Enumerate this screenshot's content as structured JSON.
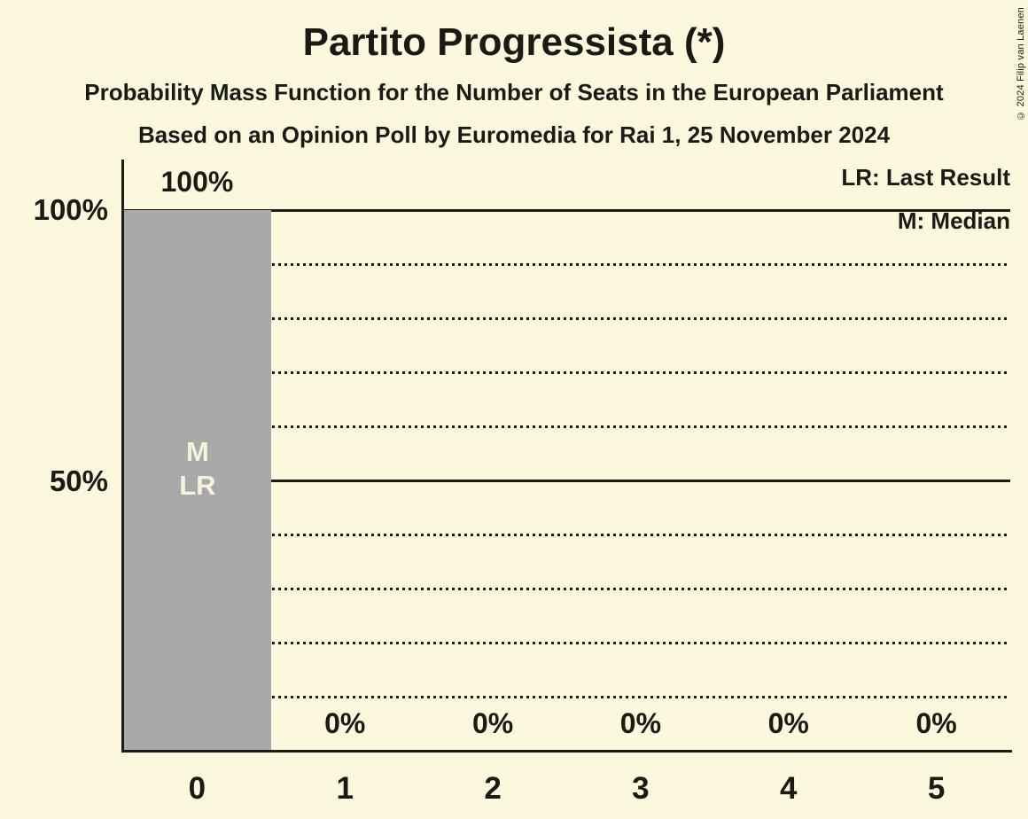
{
  "title": "Partito Progressista (*)",
  "subtitle1": "Probability Mass Function for the Number of Seats in the European Parliament",
  "subtitle2": "Based on an Opinion Poll by Euromedia for Rai 1, 25 November 2024",
  "copyright": "© 2024 Filip van Laenen",
  "legend": {
    "lr": "LR: Last Result",
    "m": "M: Median"
  },
  "colors": {
    "background": "#FCF8DE",
    "text": "#1B1B15",
    "bar": "#A9A9A9",
    "bar_label": "#F7F2DC"
  },
  "chart_data": {
    "type": "bar",
    "title": "Partito Progressista (*)",
    "categories": [
      "0",
      "1",
      "2",
      "3",
      "4",
      "5"
    ],
    "values": [
      100,
      0,
      0,
      0,
      0,
      0
    ],
    "value_labels": [
      "100%",
      "0%",
      "0%",
      "0%",
      "0%",
      "0%"
    ],
    "ylim": [
      0,
      100
    ],
    "y_axis_labels": [
      {
        "value": 100,
        "label": "100%"
      },
      {
        "value": 50,
        "label": "50%"
      }
    ],
    "solid_gridlines": [
      50,
      100
    ],
    "dotted_gridlines": [
      10,
      20,
      30,
      40,
      60,
      70,
      80,
      90
    ],
    "grid": true,
    "legend_position": "top-right",
    "markers": {
      "median_seat": "0",
      "last_result_seat": "0",
      "lines": [
        "M",
        "LR"
      ]
    }
  }
}
